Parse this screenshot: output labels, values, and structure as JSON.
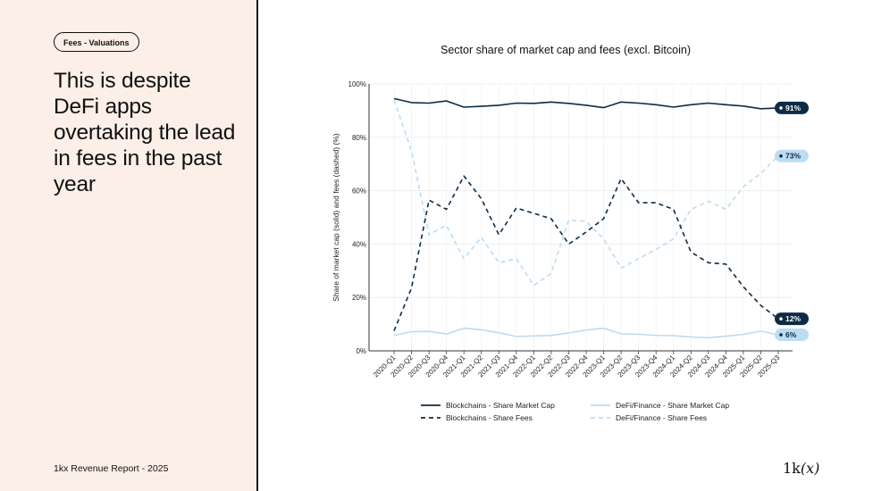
{
  "sidebar": {
    "tag": "Fees - Valuations",
    "headline": "This is despite DeFi apps overtaking the lead in fees in the past year",
    "footer": "1kx Revenue Report  - 2025"
  },
  "logo": {
    "prefix": "1k",
    "italic": "(x)"
  },
  "colors": {
    "navy": "#0d2b45",
    "light_blue": "#bcdcf2",
    "panel_bg": "#fcefe7"
  },
  "chart_data": {
    "type": "line",
    "title": "Sector share of market cap and fees (excl. Bitcoin)",
    "xlabel": "",
    "ylabel": "Share of market cap (solid) and fees (dashed) (%)",
    "ylim": [
      0,
      100
    ],
    "yticks": [
      0,
      20,
      40,
      60,
      80,
      100
    ],
    "ytick_labels": [
      "0%",
      "20%",
      "40%",
      "60%",
      "80%",
      "100%"
    ],
    "grid": true,
    "legend_position": "bottom",
    "categories": [
      "2020-Q1",
      "2020-Q2",
      "2020-Q3",
      "2020-Q4",
      "2021-Q1",
      "2021-Q2",
      "2021-Q3",
      "2021-Q4",
      "2022-Q1",
      "2022-Q2",
      "2022-Q3",
      "2022-Q4",
      "2023-Q1",
      "2023-Q2",
      "2023-Q3",
      "2023-Q4",
      "2024-Q1",
      "2024-Q2",
      "2024-Q3",
      "2024-Q4",
      "2025-Q1",
      "2025-Q2",
      "2025-Q3"
    ],
    "series": [
      {
        "name": "Blockchains - Share Market Cap",
        "style": "solid",
        "color": "#0d2b45",
        "values": [
          94.5,
          93,
          92.8,
          93.6,
          91.3,
          91.6,
          92,
          92.8,
          92.7,
          93.2,
          92.7,
          92,
          91.1,
          93.2,
          92.8,
          92.2,
          91.3,
          92.2,
          92.8,
          92.2,
          91.7,
          90.7,
          91
        ],
        "end_label": "91%"
      },
      {
        "name": "DeFi/Finance - Share Market Cap",
        "style": "solid",
        "color": "#bcdcf2",
        "values": [
          5.8,
          7.2,
          7.3,
          6.3,
          8.5,
          7.9,
          6.8,
          5.4,
          5.6,
          5.8,
          6.7,
          7.8,
          8.5,
          6.4,
          6.2,
          5.8,
          5.7,
          5.2,
          4.9,
          5.5,
          6.2,
          7.4,
          6
        ],
        "end_label": "6%"
      },
      {
        "name": "Blockchains - Share Fees",
        "style": "dashed",
        "color": "#0d2b45",
        "values": [
          7.5,
          23.5,
          56.5,
          53,
          65.5,
          57,
          43.5,
          53.5,
          51.5,
          49.5,
          40,
          44.5,
          49.5,
          64.5,
          55.5,
          55.5,
          53,
          37,
          33,
          32.5,
          24,
          17,
          12
        ],
        "end_label": "12%"
      },
      {
        "name": "DeFi/Finance - Share Fees",
        "style": "dashed",
        "color": "#bcdcf2",
        "values": [
          94,
          75,
          43.5,
          47,
          34.5,
          42.5,
          33,
          34.5,
          24.5,
          29,
          49,
          48.5,
          42,
          31,
          34.5,
          38,
          42,
          53,
          56,
          53,
          61.5,
          66.5,
          73
        ],
        "end_label": "73%"
      }
    ],
    "legend": [
      "Blockchains - Share Market Cap",
      "DeFi/Finance - Share Market Cap",
      "Blockchains - Share Fees",
      "DeFi/Finance - Share Fees"
    ]
  }
}
